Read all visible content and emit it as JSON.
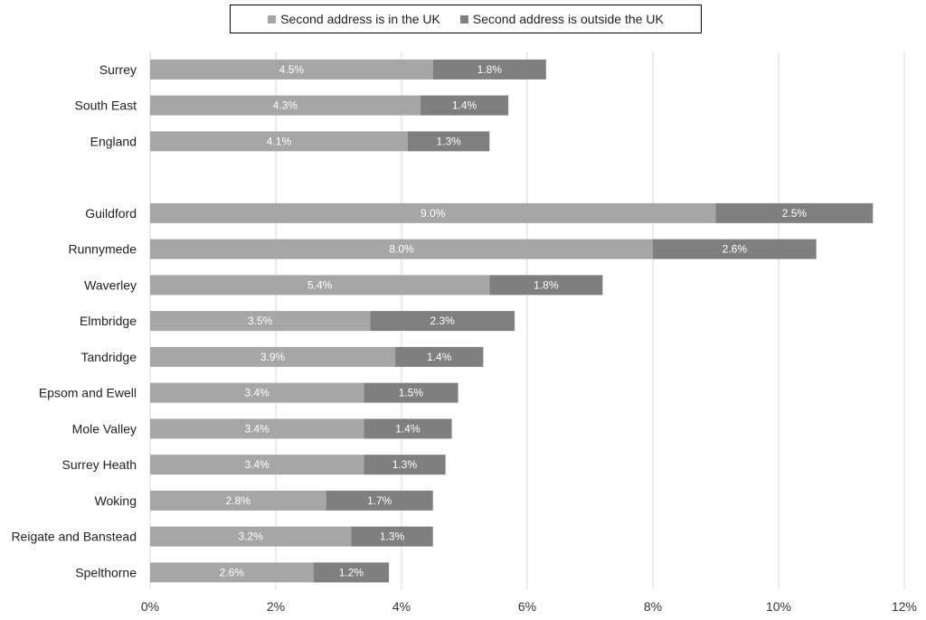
{
  "chart_data": {
    "type": "bar",
    "orientation": "horizontal",
    "stacked": true,
    "title": "",
    "xlabel": "",
    "ylabel": "",
    "xlim": [
      0,
      12
    ],
    "x_ticks": [
      "0%",
      "2%",
      "4%",
      "6%",
      "8%",
      "10%",
      "12%"
    ],
    "grid": "vertical",
    "legend_position": "top",
    "categories": [
      "Surrey",
      "South East",
      "England",
      "",
      "Guildford",
      "Runnymede",
      "Waverley",
      "Elmbridge",
      "Tandridge",
      "Epsom and Ewell",
      "Mole Valley",
      "Surrey Heath",
      "Woking",
      "Reigate and Banstead",
      "Spelthorne"
    ],
    "series": [
      {
        "name": "Second address is in the UK",
        "color": "#a6a6a6",
        "values": [
          4.5,
          4.3,
          4.1,
          null,
          9.0,
          8.0,
          5.4,
          3.5,
          3.9,
          3.4,
          3.4,
          3.4,
          2.8,
          3.2,
          2.6
        ],
        "labels": [
          "4.5%",
          "4.3%",
          "4.1%",
          "",
          "9.0%",
          "8.0%",
          "5.4%",
          "3.5%",
          "3.9%",
          "3.4%",
          "3.4%",
          "3.4%",
          "2.8%",
          "3.2%",
          "2.6%"
        ]
      },
      {
        "name": "Second address is outside the UK",
        "color": "#7f7f7f",
        "values": [
          1.8,
          1.4,
          1.3,
          null,
          2.5,
          2.6,
          1.8,
          2.3,
          1.4,
          1.5,
          1.4,
          1.3,
          1.7,
          1.3,
          1.2
        ],
        "labels": [
          "1.8%",
          "1.4%",
          "1.3%",
          "",
          "2.5%",
          "2.6%",
          "1.8%",
          "2.3%",
          "1.4%",
          "1.5%",
          "1.4%",
          "1.3%",
          "1.7%",
          "1.3%",
          "1.2%"
        ]
      }
    ]
  }
}
